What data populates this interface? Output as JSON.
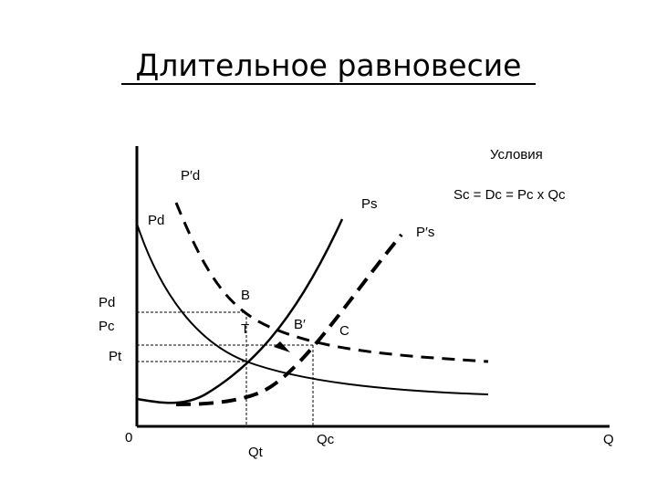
{
  "title": "Длительное равновесие",
  "conditions": {
    "title": "Условия",
    "formula": "Sc = Dc = Pc x Qc"
  },
  "curves": {
    "demand": "Pd",
    "demand_shifted": "P′d",
    "supply": "Ps",
    "supply_shifted": "P′s"
  },
  "points": [
    "B",
    "T",
    "B′",
    "C"
  ],
  "axis": {
    "origin": "0",
    "x": "Q",
    "y_labels": [
      "Pd",
      "Pc",
      "Pt"
    ],
    "x_labels": [
      "Qt",
      "Qc"
    ]
  }
}
